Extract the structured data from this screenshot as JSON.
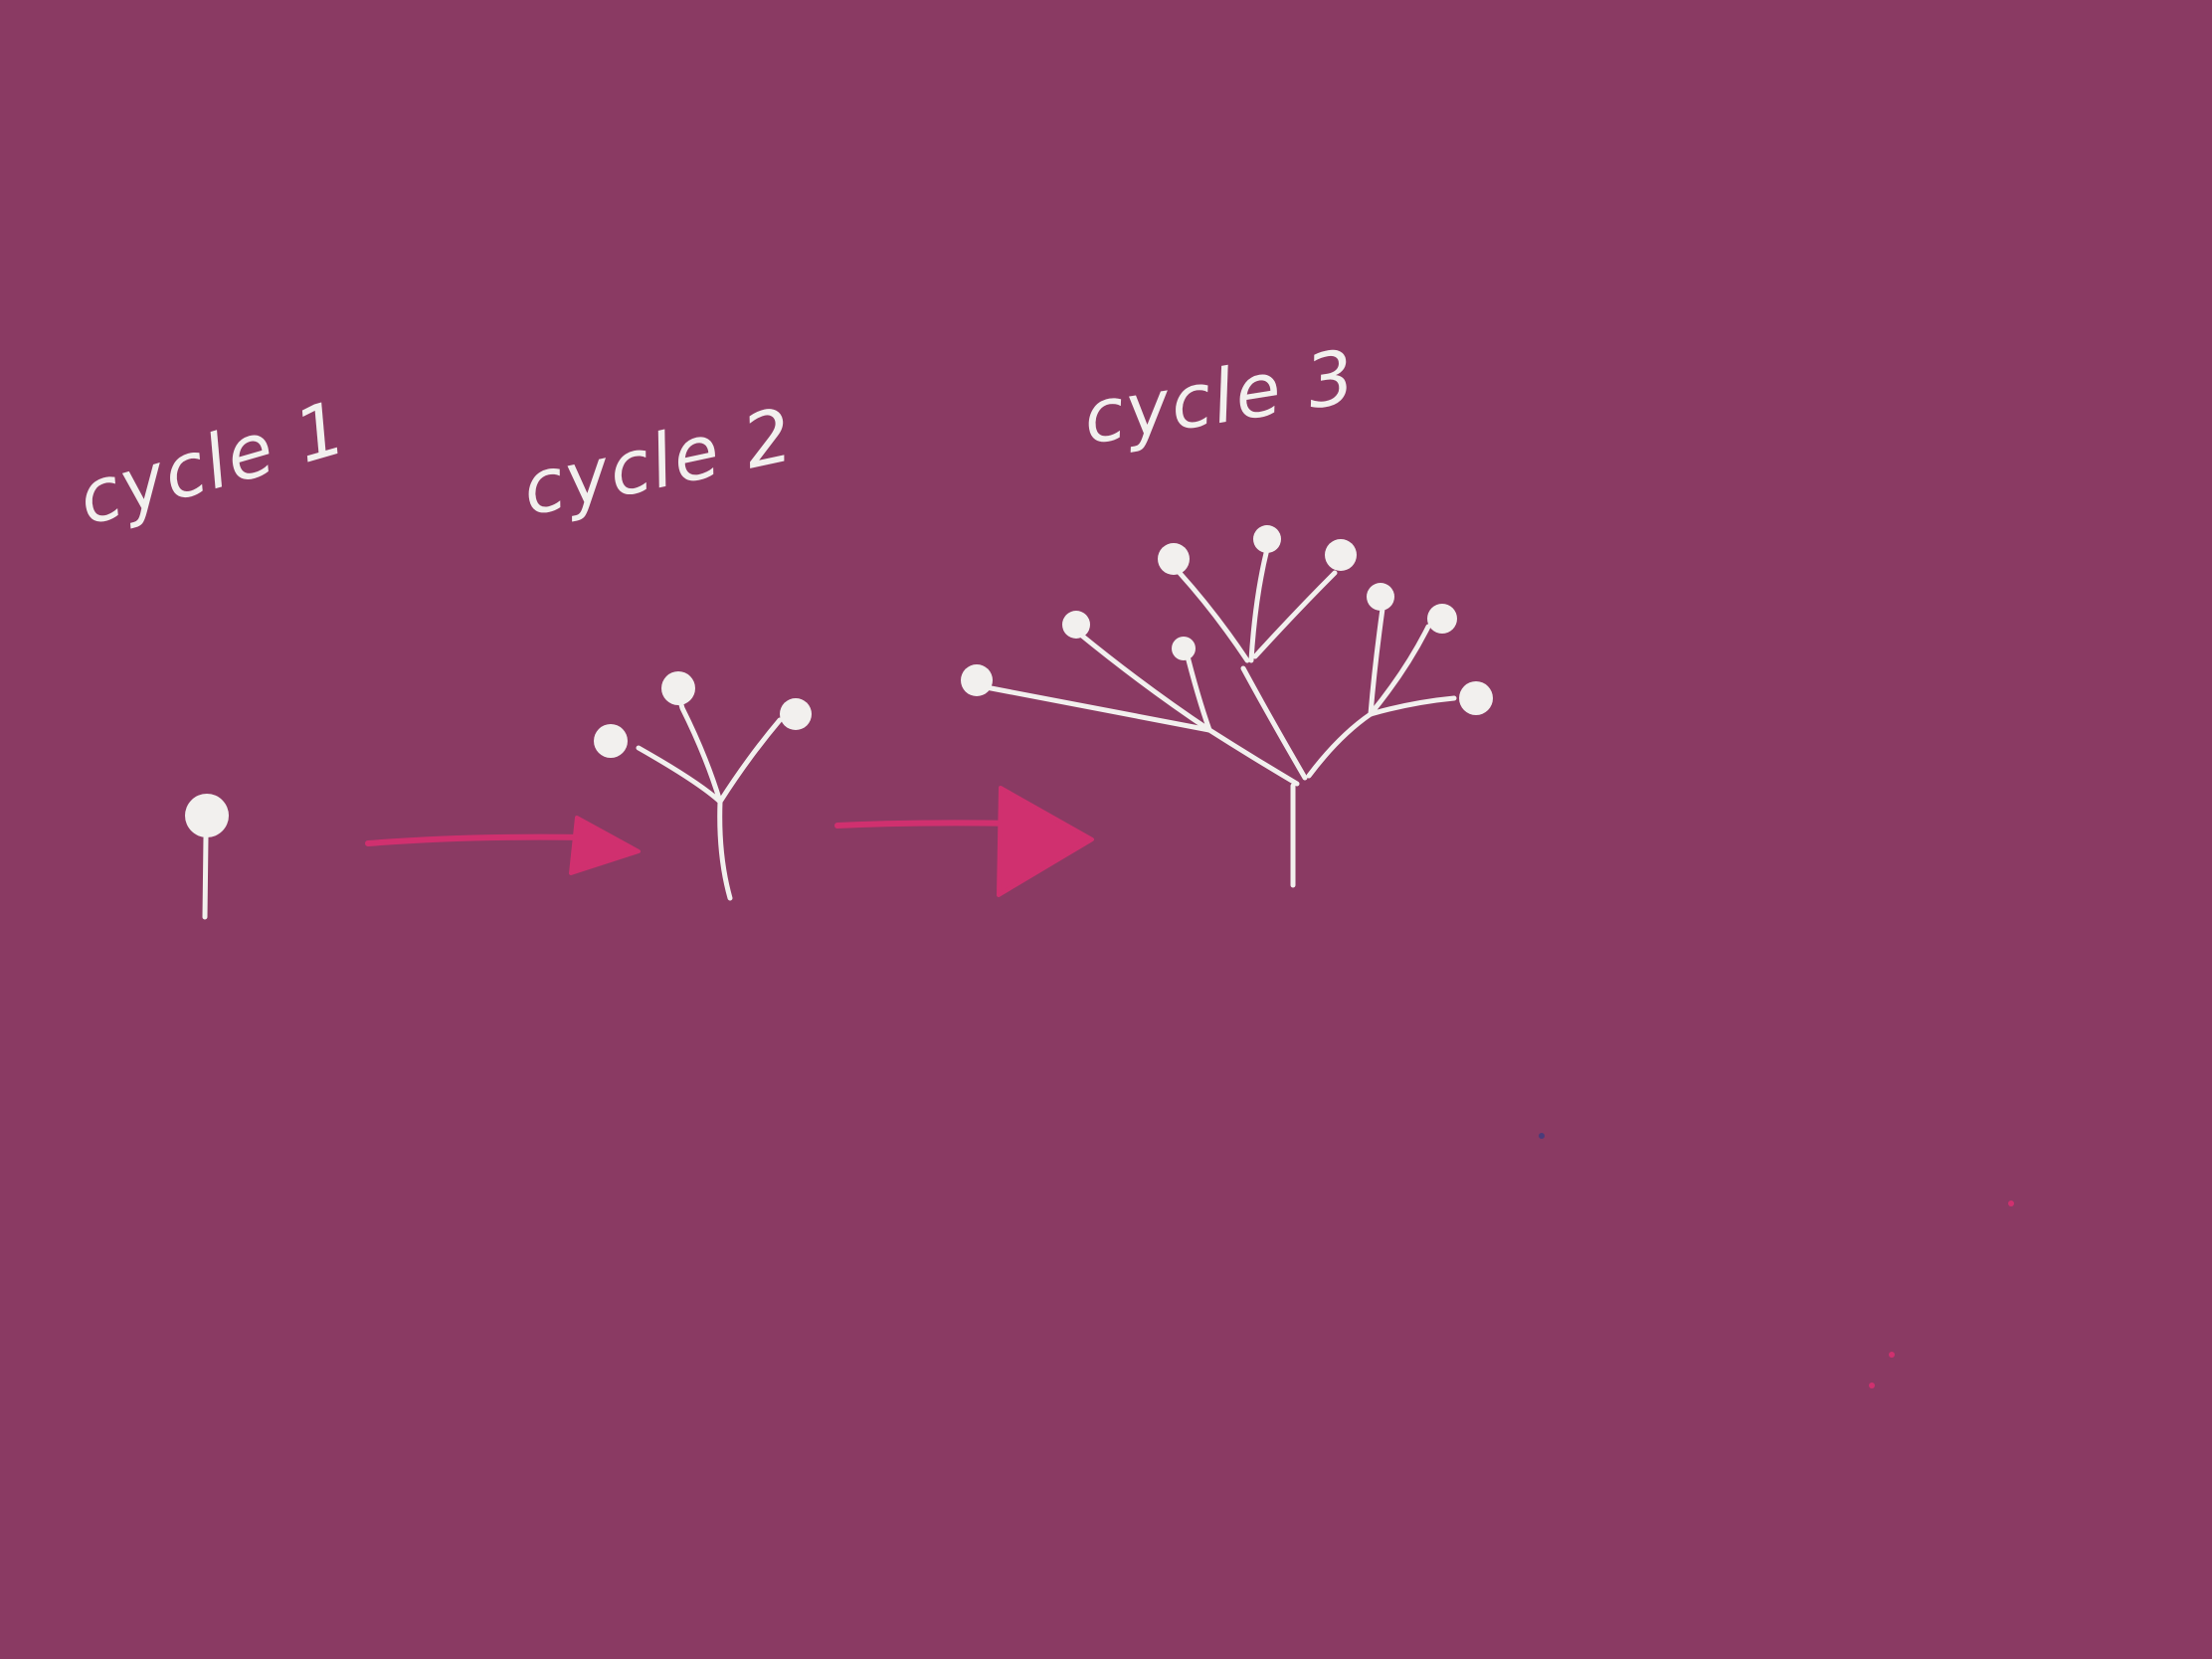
{
  "colors": {
    "background": "#8a3a63",
    "ink": "#f2f0ee",
    "arrow": "#d0306f"
  },
  "stages": [
    {
      "label": "cycle 1",
      "tips": 1
    },
    {
      "label": "cycle 2",
      "tips": 3
    },
    {
      "label": "cycle 3",
      "tips": 9
    }
  ],
  "arrows": [
    {
      "from": "cycle 1",
      "to": "cycle 2"
    },
    {
      "from": "cycle 2",
      "to": "cycle 3"
    }
  ]
}
